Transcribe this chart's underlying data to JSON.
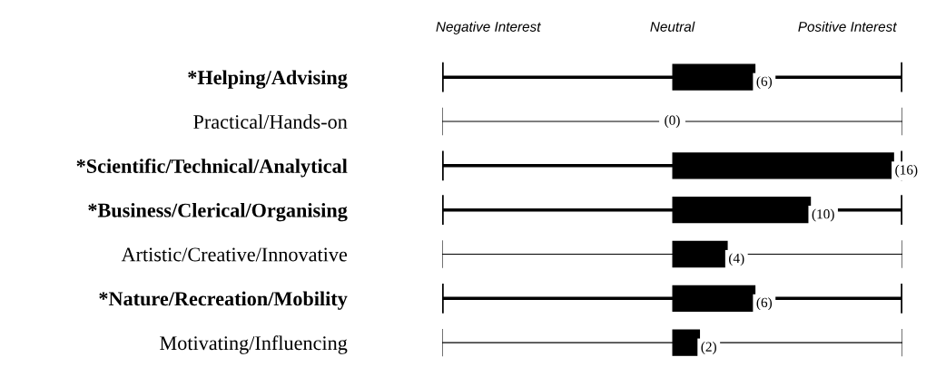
{
  "chart_data": {
    "type": "bar",
    "orientation": "horizontal",
    "categories": [
      "*Helping/Advising",
      "Practical/Hands-on",
      "*Scientific/Technical/Analytical",
      "*Business/Clerical/Organising",
      "Artistic/Creative/Innovative",
      "*Nature/Recreation/Mobility",
      "Motivating/Influencing"
    ],
    "values": [
      6,
      0,
      16,
      10,
      4,
      6,
      2
    ],
    "value_labels": [
      "(6)",
      "(0)",
      "(16)",
      "(10)",
      "(4)",
      "(6)",
      "(2)"
    ],
    "color": "#000000",
    "xlim": [
      -16.6,
      16.6
    ],
    "annotations": [
      "Negative Interest",
      "Neutral",
      "Positive Interest"
    ],
    "grid": "y",
    "legend": false
  }
}
